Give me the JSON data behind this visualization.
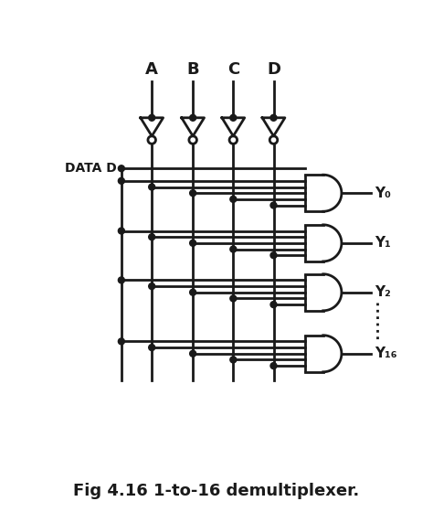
{
  "title": "Fig 4.16 1-to-16 demultiplexer.",
  "title_fontsize": 13,
  "title_fontweight": "bold",
  "bg_color": "#ffffff",
  "line_color": "#1a1a1a",
  "lw": 2.0,
  "input_labels": [
    "A",
    "B",
    "C",
    "D"
  ],
  "output_labels": [
    "Y₀",
    "Y₁",
    "Y₂",
    "Y₁₆"
  ],
  "data_label": "DATA D"
}
